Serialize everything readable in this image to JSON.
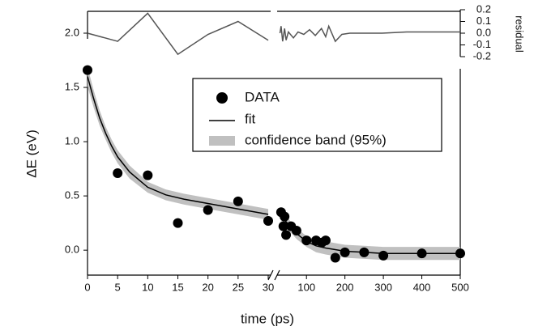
{
  "chart_data": {
    "type": "scatter",
    "x_label": "time (ps)",
    "y_label": "ΔE (eV)",
    "x_segments": [
      {
        "xlim": [
          0,
          30
        ],
        "xticks": [
          0,
          5,
          10,
          15,
          20,
          25,
          30
        ]
      },
      {
        "xlim": [
          30,
          500
        ],
        "xticks": [
          100,
          200,
          300,
          400,
          500
        ]
      }
    ],
    "ylim": [
      -0.23,
      2.0
    ],
    "yticks": [
      {
        "value": 0,
        "label": "0.0"
      },
      {
        "value": 0.5,
        "label": "0.5"
      },
      {
        "value": 1,
        "label": "1.0"
      },
      {
        "value": 1.5,
        "label": "1.5"
      },
      {
        "value": 2,
        "label": "2.0"
      }
    ],
    "series": [
      {
        "name": "DATA",
        "color": "#000000",
        "x": [
          0,
          5,
          10,
          15,
          20,
          25,
          30,
          34,
          43,
          40,
          47,
          60,
          74,
          100,
          125,
          140,
          150,
          175,
          200,
          250,
          300,
          400,
          500
        ],
        "values": [
          1.66,
          0.71,
          0.69,
          0.25,
          0.37,
          0.45,
          0.27,
          0.35,
          0.31,
          0.22,
          0.14,
          0.22,
          0.18,
          0.09,
          0.09,
          0.07,
          0.09,
          -0.07,
          -0.02,
          -0.02,
          -0.05,
          -0.03,
          -0.03
        ]
      },
      {
        "name": "fit",
        "color": "#000000",
        "x": [
          0,
          1,
          2,
          3,
          4,
          5,
          7,
          10,
          13,
          16,
          20,
          25,
          30,
          null,
          34,
          40,
          50,
          60,
          75,
          100,
          125,
          150,
          200,
          250,
          300,
          400,
          500
        ],
        "values": [
          1.6,
          1.4,
          1.22,
          1.08,
          0.96,
          0.86,
          0.72,
          0.58,
          0.51,
          0.47,
          0.43,
          0.38,
          0.33,
          null,
          0.32,
          0.29,
          0.25,
          0.21,
          0.15,
          0.08,
          0.04,
          0.02,
          -0.01,
          -0.02,
          -0.03,
          -0.03,
          -0.03
        ]
      },
      {
        "name": "confidence band (95%)",
        "color": "#c0c0c0",
        "x": [
          0,
          1,
          2,
          3,
          4,
          5,
          7,
          10,
          13,
          16,
          20,
          25,
          30,
          null,
          34,
          40,
          50,
          60,
          75,
          100,
          125,
          150,
          200,
          250,
          300,
          400,
          500
        ],
        "lower": [
          1.51,
          1.32,
          1.15,
          1.02,
          0.9,
          0.8,
          0.66,
          0.53,
          0.46,
          0.42,
          0.38,
          0.33,
          0.28,
          null,
          0.27,
          0.24,
          0.2,
          0.16,
          0.1,
          0.03,
          -0.02,
          -0.04,
          -0.07,
          -0.08,
          -0.09,
          -0.09,
          -0.09
        ],
        "upper": [
          1.69,
          1.48,
          1.29,
          1.14,
          1.02,
          0.92,
          0.78,
          0.63,
          0.56,
          0.52,
          0.48,
          0.43,
          0.38,
          null,
          0.37,
          0.34,
          0.3,
          0.26,
          0.2,
          0.13,
          0.1,
          0.08,
          0.05,
          0.04,
          0.03,
          0.03,
          0.03
        ]
      }
    ],
    "residual": {
      "label": "residual",
      "color": "#555555",
      "ylim": [
        -0.2,
        0.2
      ],
      "yticks": [
        {
          "value": 0.2,
          "label": "0.2"
        },
        {
          "value": 0.1,
          "label": "0.1"
        },
        {
          "value": 0,
          "label": "0.0"
        },
        {
          "value": -0.1,
          "label": "-0.1"
        },
        {
          "value": -0.2,
          "label": "-0.2"
        }
      ],
      "x": [
        0,
        5,
        10,
        15,
        20,
        25,
        30,
        null,
        31,
        34,
        38,
        43,
        47,
        53,
        66,
        78,
        93,
        108,
        123,
        139,
        150,
        158,
        175,
        192,
        213,
        255,
        297,
        361,
        500
      ],
      "values": [
        0,
        -0.07,
        0.17,
        -0.18,
        -0.01,
        0.1,
        -0.06,
        null,
        0,
        0.06,
        -0.07,
        0.04,
        -0.06,
        0.01,
        -0.04,
        0.01,
        -0.01,
        0.03,
        -0.02,
        0.04,
        -0.03,
        0.06,
        -0.07,
        -0.01,
        0,
        0,
        0,
        0.01,
        0.01
      ]
    }
  }
}
